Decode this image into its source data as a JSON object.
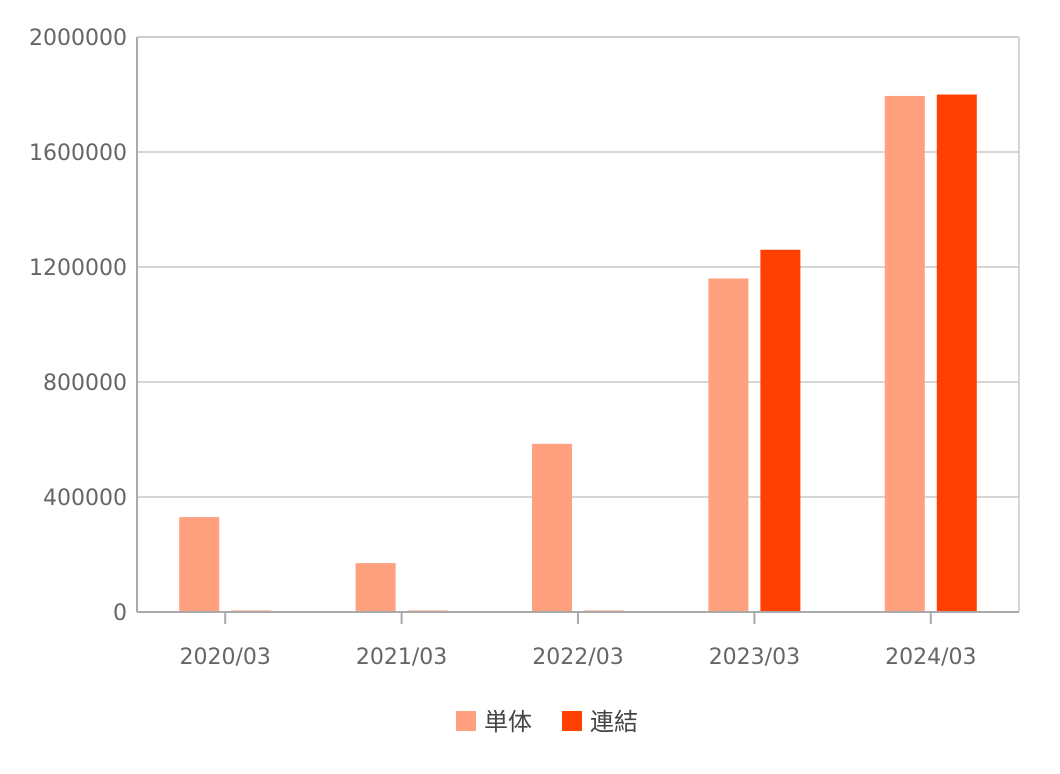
{
  "chart_data": {
    "type": "bar",
    "categories": [
      "2020/03",
      "2021/03",
      "2022/03",
      "2023/03",
      "2024/03"
    ],
    "series": [
      {
        "name": "単体",
        "color": "#FFA07F",
        "values": [
          330000,
          170000,
          585000,
          1160000,
          1795000
        ]
      },
      {
        "name": "連結",
        "color": "#FF4000",
        "values": [
          null,
          null,
          null,
          1260000,
          1800000
        ]
      }
    ],
    "ylim": [
      0,
      2000000
    ],
    "yticks": [
      "0",
      "400000",
      "800000",
      "1200000",
      "1600000",
      "2000000"
    ],
    "yticks_values": [
      0,
      400000,
      800000,
      1200000,
      1600000,
      2000000
    ],
    "grid": true,
    "legend_position": "bottom-center",
    "colors": {
      "grid": "#C8C8C8",
      "axis": "#AAAAAA",
      "tick_text": "#666666"
    }
  }
}
